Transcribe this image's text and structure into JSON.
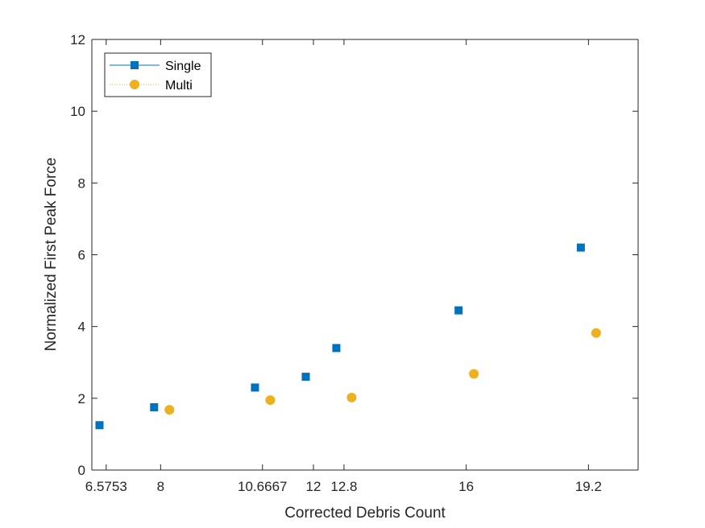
{
  "chart_data": {
    "type": "scatter",
    "title": "",
    "xlabel": "Corrected Debris Count",
    "ylabel": "Normalized First Peak Force",
    "xlim": [
      6.2,
      20.5
    ],
    "ylim": [
      0,
      12
    ],
    "x_ticks": [
      6.5753,
      8,
      10.6667,
      12,
      12.8,
      16,
      19.2
    ],
    "x_tick_labels": [
      "6.5753",
      "8",
      "10.6667",
      "12",
      "12.8",
      "16",
      "19.2"
    ],
    "y_ticks": [
      0,
      2,
      4,
      6,
      8,
      10,
      12
    ],
    "y_tick_labels": [
      "0",
      "2",
      "4",
      "6",
      "8",
      "10",
      "12"
    ],
    "grid": false,
    "legend_position": "top-left",
    "series": [
      {
        "name": "Single",
        "marker": "square",
        "color": "#0072BD",
        "x": [
          6.4,
          7.83,
          10.47,
          11.8,
          12.6,
          15.8,
          19.0
        ],
        "y": [
          1.25,
          1.75,
          2.3,
          2.6,
          3.4,
          4.45,
          6.2
        ]
      },
      {
        "name": "Multi",
        "marker": "circle",
        "color": "#EDB120",
        "x": [
          8.23,
          10.87,
          13.0,
          16.2,
          19.4
        ],
        "y": [
          1.68,
          1.95,
          2.02,
          2.68,
          3.82
        ]
      }
    ]
  }
}
